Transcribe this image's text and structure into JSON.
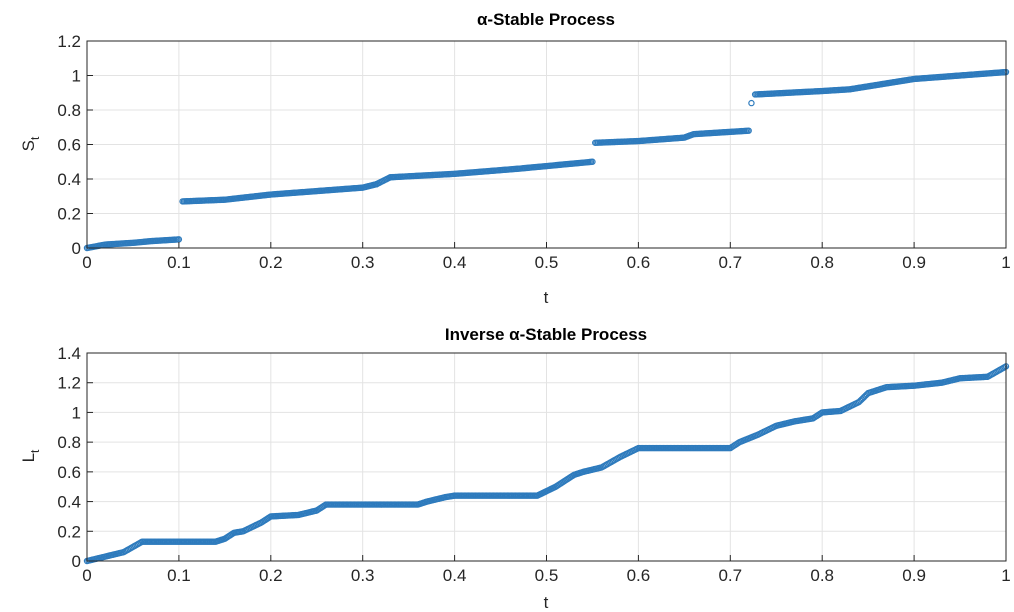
{
  "chart_data": [
    {
      "type": "scatter",
      "title": "α-Stable Process",
      "xlabel": "t",
      "ylabel_main": "S",
      "ylabel_sub": "t",
      "xlim": [
        0,
        1
      ],
      "ylim": [
        0,
        1.2
      ],
      "xticks": [
        0,
        0.1,
        0.2,
        0.3,
        0.4,
        0.5,
        0.6,
        0.7,
        0.8,
        0.9,
        1
      ],
      "xtick_labels": [
        "0",
        "0.1",
        "0.2",
        "0.3",
        "0.4",
        "0.5",
        "0.6",
        "0.7",
        "0.8",
        "0.9",
        "1"
      ],
      "yticks": [
        0,
        0.2,
        0.4,
        0.6,
        0.8,
        1,
        1.2
      ],
      "ytick_labels": [
        "0",
        "0.2",
        "0.4",
        "0.6",
        "0.8",
        "1",
        "1.2"
      ],
      "grid": true,
      "marker": "circle-open",
      "color": "#2e7bbd",
      "segments": [
        {
          "x": [
            0.0,
            0.02,
            0.05,
            0.07,
            0.1
          ],
          "y": [
            0.0,
            0.02,
            0.03,
            0.04,
            0.05
          ]
        },
        {
          "x": [
            0.104,
            0.15,
            0.2,
            0.25,
            0.3,
            0.315
          ],
          "y": [
            0.27,
            0.28,
            0.31,
            0.33,
            0.35,
            0.37
          ]
        },
        {
          "x": [
            0.315,
            0.33
          ],
          "y": [
            0.37,
            0.41
          ]
        },
        {
          "x": [
            0.33,
            0.4,
            0.47,
            0.55
          ],
          "y": [
            0.41,
            0.43,
            0.46,
            0.5
          ]
        },
        {
          "x": [
            0.553,
            0.6,
            0.65,
            0.66,
            0.72
          ],
          "y": [
            0.61,
            0.62,
            0.64,
            0.66,
            0.68
          ]
        },
        {
          "x": [
            0.727,
            0.8,
            0.83,
            0.9,
            1.0
          ],
          "y": [
            0.89,
            0.91,
            0.92,
            0.98,
            1.02
          ]
        }
      ],
      "isolated_points": [
        {
          "x": 0.723,
          "y": 0.84
        }
      ]
    },
    {
      "type": "scatter",
      "title": "Inverse α-Stable Process",
      "xlabel": "t",
      "ylabel_main": "L",
      "ylabel_sub": "t",
      "xlim": [
        0,
        1
      ],
      "ylim": [
        0,
        1.4
      ],
      "xticks": [
        0,
        0.1,
        0.2,
        0.3,
        0.4,
        0.5,
        0.6,
        0.7,
        0.8,
        0.9,
        1
      ],
      "xtick_labels": [
        "0",
        "0.1",
        "0.2",
        "0.3",
        "0.4",
        "0.5",
        "0.6",
        "0.7",
        "0.8",
        "0.9",
        "1"
      ],
      "yticks": [
        0,
        0.2,
        0.4,
        0.6,
        0.8,
        1,
        1.2,
        1.4
      ],
      "ytick_labels": [
        "0",
        "0.2",
        "0.4",
        "0.6",
        "0.8",
        "1",
        "1.2",
        "1.4"
      ],
      "grid": true,
      "marker": "circle-open",
      "color": "#2e7bbd",
      "x": [
        0.0,
        0.02,
        0.04,
        0.06,
        0.1,
        0.14,
        0.15,
        0.16,
        0.17,
        0.19,
        0.2,
        0.23,
        0.25,
        0.26,
        0.3,
        0.36,
        0.37,
        0.39,
        0.4,
        0.45,
        0.49,
        0.5,
        0.51,
        0.52,
        0.53,
        0.54,
        0.56,
        0.58,
        0.6,
        0.65,
        0.7,
        0.71,
        0.73,
        0.75,
        0.77,
        0.79,
        0.8,
        0.82,
        0.84,
        0.85,
        0.87,
        0.9,
        0.93,
        0.95,
        0.98,
        1.0
      ],
      "y": [
        0.0,
        0.03,
        0.06,
        0.13,
        0.13,
        0.13,
        0.15,
        0.19,
        0.2,
        0.26,
        0.3,
        0.31,
        0.34,
        0.38,
        0.38,
        0.38,
        0.4,
        0.43,
        0.44,
        0.44,
        0.44,
        0.47,
        0.5,
        0.54,
        0.58,
        0.6,
        0.63,
        0.7,
        0.76,
        0.76,
        0.76,
        0.8,
        0.85,
        0.91,
        0.94,
        0.96,
        1.0,
        1.01,
        1.07,
        1.13,
        1.17,
        1.18,
        1.2,
        1.23,
        1.24,
        1.31
      ]
    }
  ]
}
